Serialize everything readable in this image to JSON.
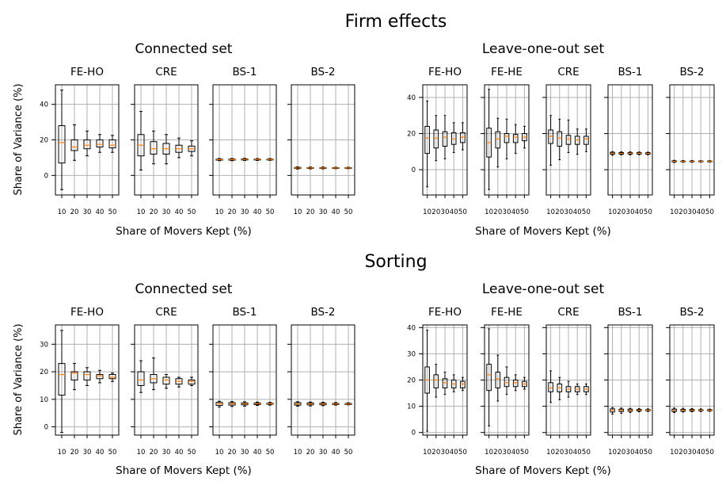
{
  "sections": [
    {
      "title": "Firm effects",
      "ylabel": "Share of Variance (%)",
      "groups": [
        {
          "label": "Connected set",
          "xlabel": "Share of Movers Kept (%)"
        },
        {
          "label": "Leave-one-out set",
          "xlabel": "Share of Movers Kept (%)"
        }
      ]
    },
    {
      "title": "Sorting",
      "ylabel": "Share of Variance (%)",
      "groups": [
        {
          "label": "Connected set",
          "xlabel": "Share of Movers Kept (%)"
        },
        {
          "label": "Leave-one-out set",
          "xlabel": "Share of Movers Kept (%)"
        }
      ]
    }
  ],
  "chart_data": [
    {
      "type": "box",
      "section": "Firm effects",
      "group": "Connected set",
      "ylim": [
        -11,
        51
      ],
      "yticks": [
        0,
        20,
        40
      ],
      "grid": true,
      "median_color": "#ff7f0e",
      "x": [
        10,
        20,
        30,
        40,
        50
      ],
      "panels": [
        {
          "name": "FE-HO",
          "boxes": [
            [
              -8,
              7,
              18.5,
              28,
              48
            ],
            [
              8.5,
              14,
              16,
              20,
              28.5
            ],
            [
              11,
              15,
              17,
              20,
              25
            ],
            [
              13,
              16,
              17.5,
              20,
              23
            ],
            [
              13,
              15.5,
              17,
              20,
              22.5
            ]
          ]
        },
        {
          "name": "CRE",
          "boxes": [
            [
              3,
              11,
              17,
              23,
              36
            ],
            [
              6.5,
              12,
              15,
              19,
              25
            ],
            [
              6.5,
              12,
              15,
              18,
              23
            ],
            [
              10,
              13,
              15,
              17,
              21
            ],
            [
              11,
              13.5,
              15,
              16.5,
              19.5
            ]
          ]
        },
        {
          "name": "BS-1",
          "boxes": [
            [
              8.3,
              8.6,
              8.9,
              9.2,
              9.5
            ],
            [
              8.3,
              8.6,
              8.9,
              9.2,
              9.5
            ],
            [
              8.4,
              8.7,
              9,
              9.3,
              9.6
            ],
            [
              8.4,
              8.7,
              9,
              9.2,
              9.5
            ],
            [
              8.5,
              8.7,
              9,
              9.2,
              9.5
            ]
          ]
        },
        {
          "name": "BS-2",
          "boxes": [
            [
              3.6,
              3.9,
              4.2,
              4.5,
              4.8
            ],
            [
              3.7,
              4,
              4.2,
              4.4,
              4.7
            ],
            [
              3.7,
              4,
              4.2,
              4.4,
              4.7
            ],
            [
              3.8,
              4,
              4.2,
              4.4,
              4.6
            ],
            [
              3.8,
              4,
              4.2,
              4.4,
              4.6
            ]
          ]
        }
      ]
    },
    {
      "type": "box",
      "section": "Firm effects",
      "group": "Leave-one-out set",
      "ylim": [
        -14,
        47
      ],
      "yticks": [
        0,
        20,
        40
      ],
      "grid": true,
      "median_color": "#ff7f0e",
      "x": [
        10,
        20,
        30,
        40,
        50
      ],
      "panels": [
        {
          "name": "FE-HO",
          "boxes": [
            [
              -9.5,
              9,
              17.5,
              24,
              38
            ],
            [
              5,
              12,
              17.5,
              22,
              30
            ],
            [
              6,
              13,
              18,
              21,
              30
            ],
            [
              9.5,
              14,
              17,
              20.5,
              26
            ],
            [
              11,
              15,
              18,
              20.5,
              26
            ]
          ]
        },
        {
          "name": "FE-HE",
          "boxes": [
            [
              -11,
              7,
              15,
              23,
              44.5
            ],
            [
              1.5,
              12,
              17,
              21,
              28.5
            ],
            [
              6,
              15,
              18.5,
              20,
              28
            ],
            [
              9,
              15,
              18,
              19.5,
              25
            ],
            [
              12,
              16,
              18,
              20,
              24
            ]
          ]
        },
        {
          "name": "CRE",
          "boxes": [
            [
              2.5,
              14.5,
              18.5,
              22,
              30
            ],
            [
              5.5,
              13,
              17.5,
              21,
              28
            ],
            [
              9.5,
              14,
              17,
              19,
              27.5
            ],
            [
              8.5,
              14,
              16.5,
              18.5,
              22.5
            ],
            [
              10,
              14,
              17,
              18.5,
              22.5
            ]
          ]
        },
        {
          "name": "BS-1",
          "boxes": [
            [
              8,
              8.6,
              9,
              9.6,
              10
            ],
            [
              8.2,
              8.6,
              9,
              9.5,
              9.9
            ],
            [
              8.2,
              8.7,
              9.1,
              9.5,
              9.9
            ],
            [
              8.3,
              8.7,
              9.1,
              9.5,
              9.8
            ],
            [
              8.3,
              8.6,
              9,
              9.4,
              9.7
            ]
          ]
        },
        {
          "name": "BS-2",
          "boxes": [
            [
              4,
              4.3,
              4.6,
              4.9,
              5.2
            ],
            [
              4.1,
              4.4,
              4.6,
              4.8,
              5.1
            ],
            [
              4.1,
              4.4,
              4.6,
              4.8,
              5.1
            ],
            [
              4.2,
              4.4,
              4.6,
              4.8,
              5
            ],
            [
              4.2,
              4.4,
              4.6,
              4.8,
              5
            ]
          ]
        }
      ]
    },
    {
      "type": "box",
      "section": "Sorting",
      "group": "Connected set",
      "ylim": [
        -3,
        37
      ],
      "yticks": [
        0,
        10,
        20,
        30
      ],
      "grid": true,
      "median_color": "#ff7f0e",
      "x": [
        10,
        20,
        30,
        40,
        50
      ],
      "panels": [
        {
          "name": "FE-HO",
          "boxes": [
            [
              -2,
              11.5,
              19,
              23,
              35
            ],
            [
              13.5,
              17,
              19.5,
              20,
              23
            ],
            [
              15,
              17,
              19,
              20,
              21.5
            ],
            [
              16,
              17.5,
              18.5,
              19,
              20.5
            ],
            [
              16.5,
              17.5,
              18,
              19,
              19.5
            ]
          ]
        },
        {
          "name": "CRE",
          "boxes": [
            [
              12.5,
              15,
              17,
              20,
              24
            ],
            [
              13.5,
              16,
              17.5,
              19,
              25
            ],
            [
              14,
              15.5,
              17,
              18,
              19
            ],
            [
              14.5,
              15.5,
              16.5,
              17.5,
              18
            ],
            [
              15,
              15.5,
              16.5,
              17,
              18
            ]
          ]
        },
        {
          "name": "BS-1",
          "boxes": [
            [
              7.2,
              7.8,
              8.4,
              8.9,
              9.3
            ],
            [
              7.4,
              7.9,
              8.4,
              8.8,
              9.2
            ],
            [
              7.5,
              8,
              8.4,
              8.7,
              9.1
            ],
            [
              7.8,
              8.1,
              8.4,
              8.7,
              9
            ],
            [
              7.9,
              8.2,
              8.4,
              8.6,
              8.9
            ]
          ]
        },
        {
          "name": "BS-2",
          "boxes": [
            [
              7.5,
              7.9,
              8.3,
              8.8,
              9.1
            ],
            [
              7.6,
              8,
              8.3,
              8.7,
              9
            ],
            [
              7.7,
              8,
              8.3,
              8.6,
              8.9
            ],
            [
              7.9,
              8.1,
              8.3,
              8.5,
              8.8
            ],
            [
              8,
              8.1,
              8.3,
              8.5,
              8.7
            ]
          ]
        }
      ]
    },
    {
      "type": "box",
      "section": "Sorting",
      "group": "Leave-one-out set",
      "ylim": [
        -1,
        41
      ],
      "yticks": [
        0,
        10,
        20,
        30,
        40
      ],
      "grid": true,
      "median_color": "#ff7f0e",
      "x": [
        10,
        20,
        30,
        40,
        50
      ],
      "panels": [
        {
          "name": "FE-HO",
          "boxes": [
            [
              0.5,
              15,
              20,
              25,
              39
            ],
            [
              13.5,
              17,
              20,
              22,
              26
            ],
            [
              14.5,
              17,
              19,
              20.5,
              23
            ],
            [
              15.5,
              17,
              18.5,
              20,
              22
            ],
            [
              16,
              17,
              18.5,
              19.5,
              21
            ]
          ]
        },
        {
          "name": "FE-HE",
          "boxes": [
            [
              2.5,
              16,
              22,
              26,
              39.5
            ],
            [
              12,
              17,
              20.5,
              23,
              29.5
            ],
            [
              14.5,
              17.5,
              19,
              21,
              25
            ],
            [
              16,
              17.5,
              19,
              20,
              22
            ],
            [
              16.5,
              17.5,
              18.5,
              19.5,
              21
            ]
          ]
        },
        {
          "name": "CRE",
          "boxes": [
            [
              11.5,
              15.5,
              17,
              19,
              23.5
            ],
            [
              12.5,
              15.5,
              17,
              18.5,
              21
            ],
            [
              13.5,
              15.5,
              16.5,
              17.5,
              19.5
            ],
            [
              14.5,
              15.5,
              16.5,
              17.5,
              18.5
            ],
            [
              14.5,
              15.5,
              16.5,
              17.5,
              18.5
            ]
          ]
        },
        {
          "name": "BS-1",
          "boxes": [
            [
              7,
              7.8,
              8.4,
              9,
              9.5
            ],
            [
              7.3,
              8,
              8.5,
              8.9,
              9.3
            ],
            [
              7.6,
              8.1,
              8.5,
              8.9,
              9.2
            ],
            [
              7.9,
              8.2,
              8.5,
              8.8,
              9.1
            ],
            [
              8,
              8.3,
              8.5,
              8.7,
              9
            ]
          ]
        },
        {
          "name": "BS-2",
          "boxes": [
            [
              7.6,
              8,
              8.4,
              8.9,
              9.3
            ],
            [
              7.8,
              8.1,
              8.5,
              8.8,
              9.2
            ],
            [
              7.9,
              8.2,
              8.5,
              8.8,
              9.1
            ],
            [
              8,
              8.3,
              8.5,
              8.7,
              9
            ],
            [
              8.1,
              8.3,
              8.5,
              8.7,
              8.9
            ]
          ]
        }
      ]
    }
  ]
}
